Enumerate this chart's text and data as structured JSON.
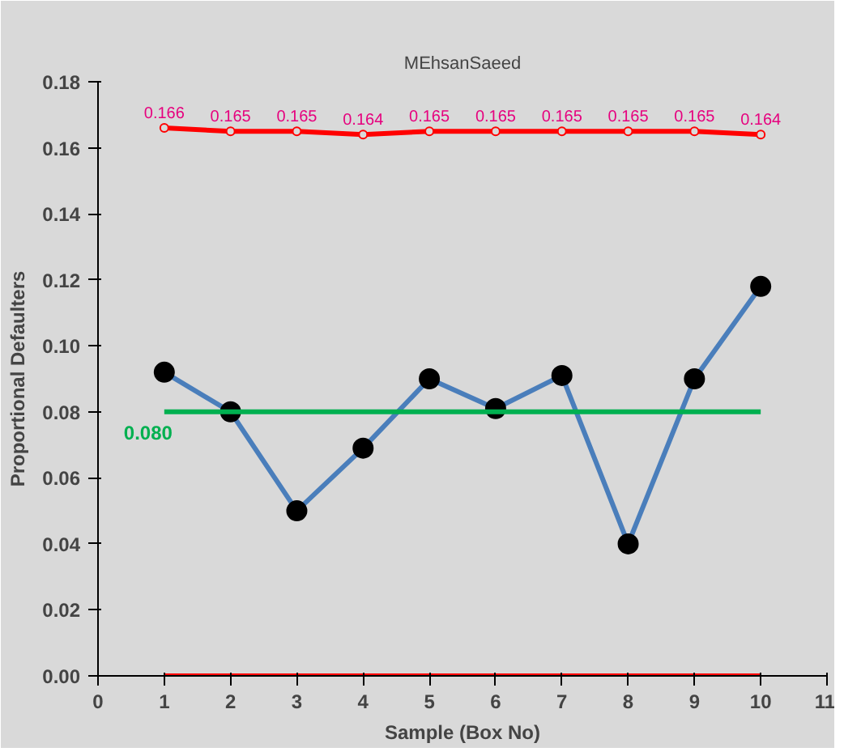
{
  "chart_data": {
    "type": "line",
    "title": "MEhsanSaeed",
    "xlabel": "Sample (Box No)",
    "ylabel": "Proportional Defaulters",
    "x": [
      1,
      2,
      3,
      4,
      5,
      6,
      7,
      8,
      9,
      10
    ],
    "series": [
      {
        "color": "#4a7ebb",
        "colors": [
          "#000000",
          "#000000",
          "#000000",
          "#000000",
          "#000000",
          "#000000",
          "#000000",
          "#000000",
          "#000000",
          "#000000"
        ],
        "marker": "circle",
        "values": [
          0.092,
          0.08,
          0.05,
          0.069,
          0.09,
          0.081,
          0.091,
          0.04,
          0.09,
          0.118
        ]
      },
      {
        "color": "#ff0000",
        "marker": "circle",
        "values": [
          0.166,
          0.165,
          0.165,
          0.164,
          0.165,
          0.165,
          0.165,
          0.165,
          0.165,
          0.164
        ],
        "value_labels": [
          "0.166",
          "0.165",
          "0.165",
          "0.164",
          "0.165",
          "0.165",
          "0.165",
          "0.165",
          "0.165",
          "0.164"
        ]
      },
      {
        "color": "#00b050",
        "marker": "none",
        "values": [
          0.08,
          0.08,
          0.08,
          0.08,
          0.08,
          0.08,
          0.08,
          0.08,
          0.08,
          0.08
        ]
      },
      {
        "color": "#ff0000",
        "marker": "none",
        "values": [
          0,
          0,
          0,
          0,
          0,
          0,
          0,
          0,
          0,
          0
        ]
      }
    ],
    "annotations": [
      {
        "text": "0.080",
        "x": 1,
        "y": 0.08
      }
    ],
    "xlim": [
      0,
      11
    ],
    "xticks": [
      0,
      1,
      2,
      3,
      4,
      5,
      6,
      7,
      8,
      9,
      10,
      11
    ],
    "ylim": [
      0,
      0.18
    ],
    "yticks": [
      {
        "value": 0,
        "label": "0.00"
      },
      {
        "value": 0.02,
        "label": "0.02"
      },
      {
        "value": 0.04,
        "label": "0.04"
      },
      {
        "value": 0.06,
        "label": "0.06"
      },
      {
        "value": 0.08,
        "label": "0.08"
      },
      {
        "value": 0.1,
        "label": "0.10"
      },
      {
        "value": 0.12,
        "label": "0.12"
      },
      {
        "value": 0.14,
        "label": "0.14"
      },
      {
        "value": 0.16,
        "label": "0.16"
      },
      {
        "value": 0.18,
        "label": "0.18"
      }
    ],
    "grid": false
  }
}
